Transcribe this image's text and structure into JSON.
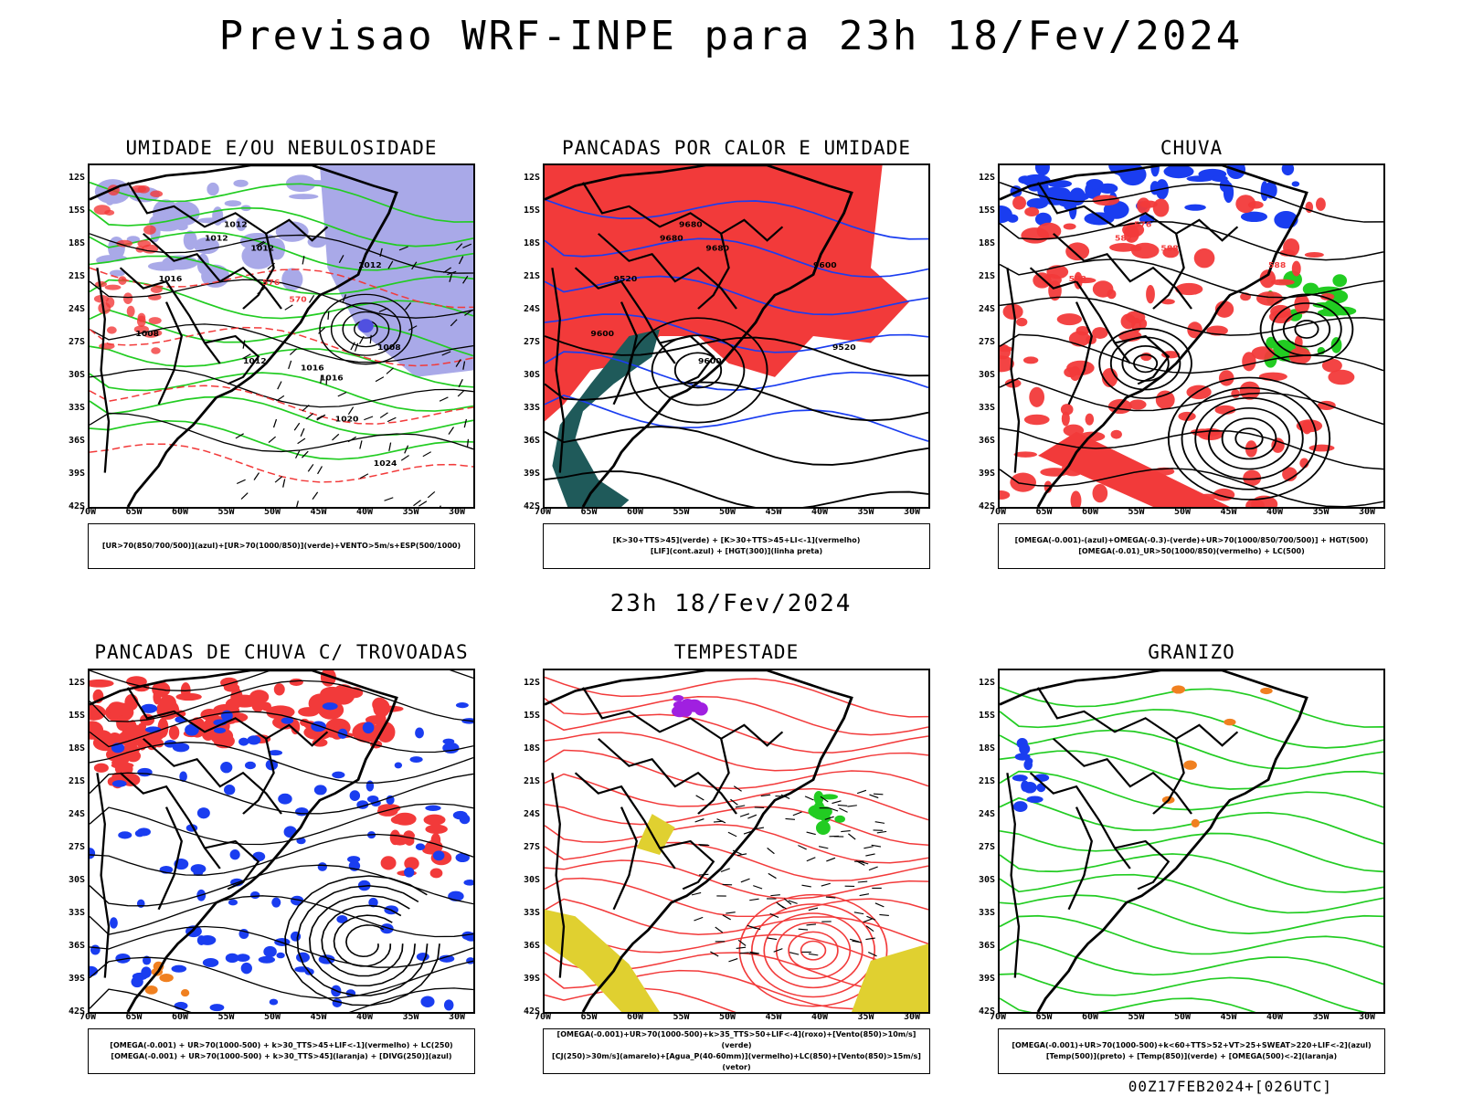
{
  "header": {
    "title": "Previsao WRF-INPE  para 23h 18/Fev/2024"
  },
  "middle_label": "23h 18/Fev/2024",
  "axes": {
    "lat_ticks": [
      "12S",
      "15S",
      "18S",
      "21S",
      "24S",
      "27S",
      "30S",
      "33S",
      "36S",
      "39S",
      "42S"
    ],
    "lon_ticks": [
      "70W",
      "65W",
      "60W",
      "55W",
      "50W",
      "45W",
      "40W",
      "35W",
      "30W"
    ]
  },
  "panels": [
    {
      "id": "umidade",
      "title": "UMIDADE E/OU NEBULOSIDADE",
      "legend": [
        "[UR>70(850/700/500)](azul)+[UR>70(1000/850)](verde)+VENTO>5m/s+ESP(500/1000)"
      ],
      "contour_labels": [
        "1012",
        "1012",
        "1012",
        "1012",
        "1016",
        "1008",
        "1008",
        "1012",
        "1016",
        "1020",
        "1024",
        "1016",
        "576",
        "570"
      ]
    },
    {
      "id": "pancadas-calor",
      "title": "PANCADAS POR CALOR E UMIDADE",
      "legend": [
        "[K>30+TTS>45](verde) + [K>30+TTS>45+LI<-1](vermelho)",
        "[LIF](cont.azul) + [HGT(300)](linha preta)"
      ],
      "contour_labels": [
        "9680",
        "9680",
        "9680",
        "9600",
        "9520",
        "9600",
        "9520",
        "9600"
      ]
    },
    {
      "id": "chuva",
      "title": "CHUVA",
      "legend": [
        "[OMEGA(-0.001)-(azul)+OMEGA(-0.3)-(verde)+UR>70(1000/850/700/500)] + HGT(500)",
        "[OMEGA(-0.01)_UR>50(1000/850)(vermelho) + LC(500)"
      ],
      "contour_labels": [
        "576",
        "582",
        "588",
        "588",
        "588"
      ]
    },
    {
      "id": "pancadas-trovoadas",
      "title": "PANCADAS DE CHUVA C/ TROVOADAS",
      "legend": [
        "[OMEGA(-0.001) + UR>70(1000-500) + k>30_TTS>45+LIF<-1](vermelho) + LC(250)",
        "[OMEGA(-0.001) + UR>70(1000-500) + k>30_TTS>45](laranja) + [DIVG(250)](azul)"
      ],
      "contour_labels": []
    },
    {
      "id": "tempestade",
      "title": "TEMPESTADE",
      "legend": [
        "[OMEGA(-0.001)+UR>70(1000-500)+k>35_TTS>50+LIF<-4](roxo)+[Vento(850)>10m/s](verde)",
        "[CJ(250)>30m/s](amarelo)+[Agua_P(40-60mm)](vermelho)+LC(850)+[Vento(850)>15m/s](vetor)"
      ],
      "contour_labels": []
    },
    {
      "id": "granizo",
      "title": "GRANIZO",
      "legend": [
        "[OMEGA(-0.001)+UR>70(1000-500)+k<60+TTS>52+VT>25+SWEAT>220+LIF<-2](azul)",
        "[Temp(500)](preto) + [Temp(850)](verde) + [OMEGA(500)<-2](laranja)"
      ],
      "contour_labels": []
    }
  ],
  "footer": "00Z17FEB2024+[026UTC]",
  "colors": {
    "blue_light": "#a9a9e8",
    "green": "#22cc22",
    "red": "#f23a3a",
    "dark_teal": "#1f5a5a",
    "blue": "#1a3df0",
    "yellow": "#e0d030",
    "purple": "#a020e0",
    "orange": "#f08020"
  }
}
